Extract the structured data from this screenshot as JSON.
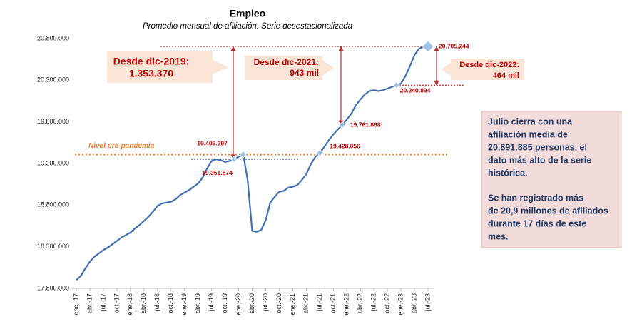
{
  "chart_data": {
    "type": "line",
    "title": "Empleo",
    "subtitle": "Promedio mensual de afiliación. Serie desestacionalizada",
    "categories": [
      "ene.-17",
      null,
      null,
      "abr.-17",
      null,
      null,
      "jul.-17",
      null,
      null,
      "oct.-17",
      null,
      null,
      "ene.-18",
      null,
      null,
      "abr.-18",
      null,
      null,
      "jul.-18",
      null,
      null,
      "oct.-18",
      null,
      null,
      "ene.-19",
      null,
      null,
      "abr.-19",
      null,
      null,
      "jul.-19",
      null,
      null,
      "oct.-19",
      null,
      null,
      "ene.-20",
      null,
      null,
      "abr.-20",
      null,
      null,
      "jul.-20",
      null,
      null,
      "oct.-20",
      null,
      null,
      "ene.-21",
      null,
      null,
      "abr.-21",
      null,
      null,
      "jul.-21",
      null,
      null,
      "oct.-21",
      null,
      null,
      "ene.-22",
      null,
      null,
      "abr.-22",
      null,
      null,
      "jul.-22",
      null,
      null,
      "oct.-22",
      null,
      null,
      "ene.-23",
      null,
      null,
      "abr.-23",
      null,
      null,
      "jul.-23"
    ],
    "values": [
      17900000,
      17950000,
      18040000,
      18120000,
      18180000,
      18220000,
      18260000,
      18290000,
      18330000,
      18370000,
      18410000,
      18440000,
      18470000,
      18520000,
      18560000,
      18610000,
      18660000,
      18720000,
      18790000,
      18820000,
      18830000,
      18840000,
      18870000,
      18920000,
      18950000,
      18980000,
      19020000,
      19060000,
      19130000,
      19240000,
      19330000,
      19350000,
      19340000,
      19320000,
      19330000,
      19351874,
      19380000,
      19409297,
      19100000,
      18490000,
      18480000,
      18500000,
      18620000,
      18830000,
      18900000,
      18960000,
      18970000,
      19010000,
      19020000,
      19040000,
      19100000,
      19170000,
      19290000,
      19380000,
      19428056,
      19500000,
      19580000,
      19650000,
      19710000,
      19761868,
      19830000,
      19900000,
      20000000,
      20070000,
      20130000,
      20170000,
      20180000,
      20170000,
      20180000,
      20200000,
      20220000,
      20240894,
      20260000,
      20350000,
      20470000,
      20600000,
      20680000,
      20700000,
      20705244
    ],
    "value_labels": [
      null,
      null,
      null,
      null,
      null,
      null,
      null,
      null,
      null,
      null,
      null,
      null,
      null,
      null,
      null,
      null,
      null,
      null,
      null,
      null,
      null,
      null,
      null,
      null,
      null,
      null,
      null,
      null,
      null,
      null,
      null,
      null,
      null,
      null,
      null,
      "19.351.874",
      null,
      "19.409.297",
      null,
      null,
      null,
      null,
      null,
      null,
      null,
      null,
      null,
      null,
      null,
      null,
      null,
      null,
      null,
      null,
      "19.428.056",
      null,
      null,
      null,
      null,
      "19.761.868",
      null,
      null,
      null,
      null,
      null,
      null,
      null,
      null,
      null,
      null,
      null,
      "20.240.894",
      null,
      null,
      null,
      null,
      null,
      null,
      "20.705.244"
    ],
    "color": "#3f6fb5",
    "marker_color": "#9dc3e6",
    "ylim": [
      17800000,
      20800000
    ],
    "yticks": [
      {
        "value": 17800000,
        "label": "17.800.000"
      },
      {
        "value": 18300000,
        "label": "18.300.000"
      },
      {
        "value": 18800000,
        "label": "18.800.000"
      },
      {
        "value": 19300000,
        "label": "19.300.000"
      },
      {
        "value": 19800000,
        "label": "19.800.000"
      },
      {
        "value": 20300000,
        "label": "20.300.000"
      },
      {
        "value": 20800000,
        "label": "20.800.000"
      }
    ],
    "grid": false,
    "reference_line": {
      "label": "Nivel pre-pandemia",
      "value": 19409297,
      "color": "#ed7d31"
    },
    "annotations": [
      {
        "lines": [
          "Desde dic-2019:",
          "1.353.370"
        ]
      },
      {
        "lines": [
          "Desde dic-2021:",
          "943 mil"
        ]
      },
      {
        "lines": [
          "Desde dic-2022:",
          "464 mil"
        ]
      }
    ],
    "note": [
      [
        "Julio cierra con una",
        "afiliación media de",
        "20.891.885 personas, el",
        "dato más alto de la serie",
        "histórica."
      ],
      [
        "Se han registrado más",
        "de 20,9 millones de afiliados",
        "durante 17 días de este",
        "mes."
      ]
    ]
  }
}
